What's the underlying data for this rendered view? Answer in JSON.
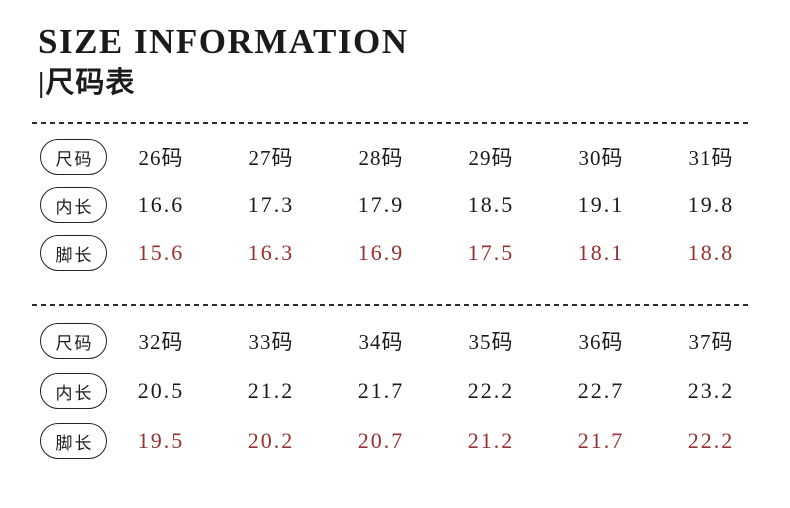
{
  "page": {
    "title": "SIZE INFORMATION",
    "subtitle": "|尺码表"
  },
  "colors": {
    "ink": "#1b1b1b",
    "red_values": "#97302f",
    "dash_line": "#2b2b2b",
    "background": "#ffffff"
  },
  "tables": [
    {
      "rows": [
        {
          "label": "尺码",
          "type": "header",
          "values": [
            "26码",
            "27码",
            "28码",
            "29码",
            "30码",
            "31码"
          ]
        },
        {
          "label": "内长",
          "type": "normal",
          "values": [
            "16.6",
            "17.3",
            "17.9",
            "18.5",
            "19.1",
            "19.8"
          ]
        },
        {
          "label": "脚长",
          "type": "red",
          "values": [
            "15.6",
            "16.3",
            "16.9",
            "17.5",
            "18.1",
            "18.8"
          ]
        }
      ]
    },
    {
      "rows": [
        {
          "label": "尺码",
          "type": "header",
          "values": [
            "32码",
            "33码",
            "34码",
            "35码",
            "36码",
            "37码"
          ]
        },
        {
          "label": "内长",
          "type": "normal",
          "values": [
            "20.5",
            "21.2",
            "21.7",
            "22.2",
            "22.7",
            "23.2"
          ]
        },
        {
          "label": "脚长",
          "type": "red",
          "values": [
            "19.5",
            "20.2",
            "20.7",
            "21.2",
            "21.7",
            "22.2"
          ]
        }
      ]
    }
  ],
  "chart_data": {
    "type": "table",
    "title": "SIZE INFORMATION",
    "subtitle": "尺码表",
    "tables": [
      {
        "size_row_label": "尺码",
        "columns": [
          "26码",
          "27码",
          "28码",
          "29码",
          "30码",
          "31码"
        ],
        "rows": [
          {
            "label": "内长",
            "values": [
              16.6,
              17.3,
              17.9,
              18.5,
              19.1,
              19.8
            ]
          },
          {
            "label": "脚长",
            "values": [
              15.6,
              16.3,
              16.9,
              17.5,
              18.1,
              18.8
            ]
          }
        ]
      },
      {
        "size_row_label": "尺码",
        "columns": [
          "32码",
          "33码",
          "34码",
          "35码",
          "36码",
          "37码"
        ],
        "rows": [
          {
            "label": "内长",
            "values": [
              20.5,
              21.2,
              21.7,
              22.2,
              22.7,
              23.2
            ]
          },
          {
            "label": "脚长",
            "values": [
              19.5,
              20.2,
              20.7,
              21.2,
              21.7,
              22.2
            ]
          }
        ]
      }
    ]
  }
}
